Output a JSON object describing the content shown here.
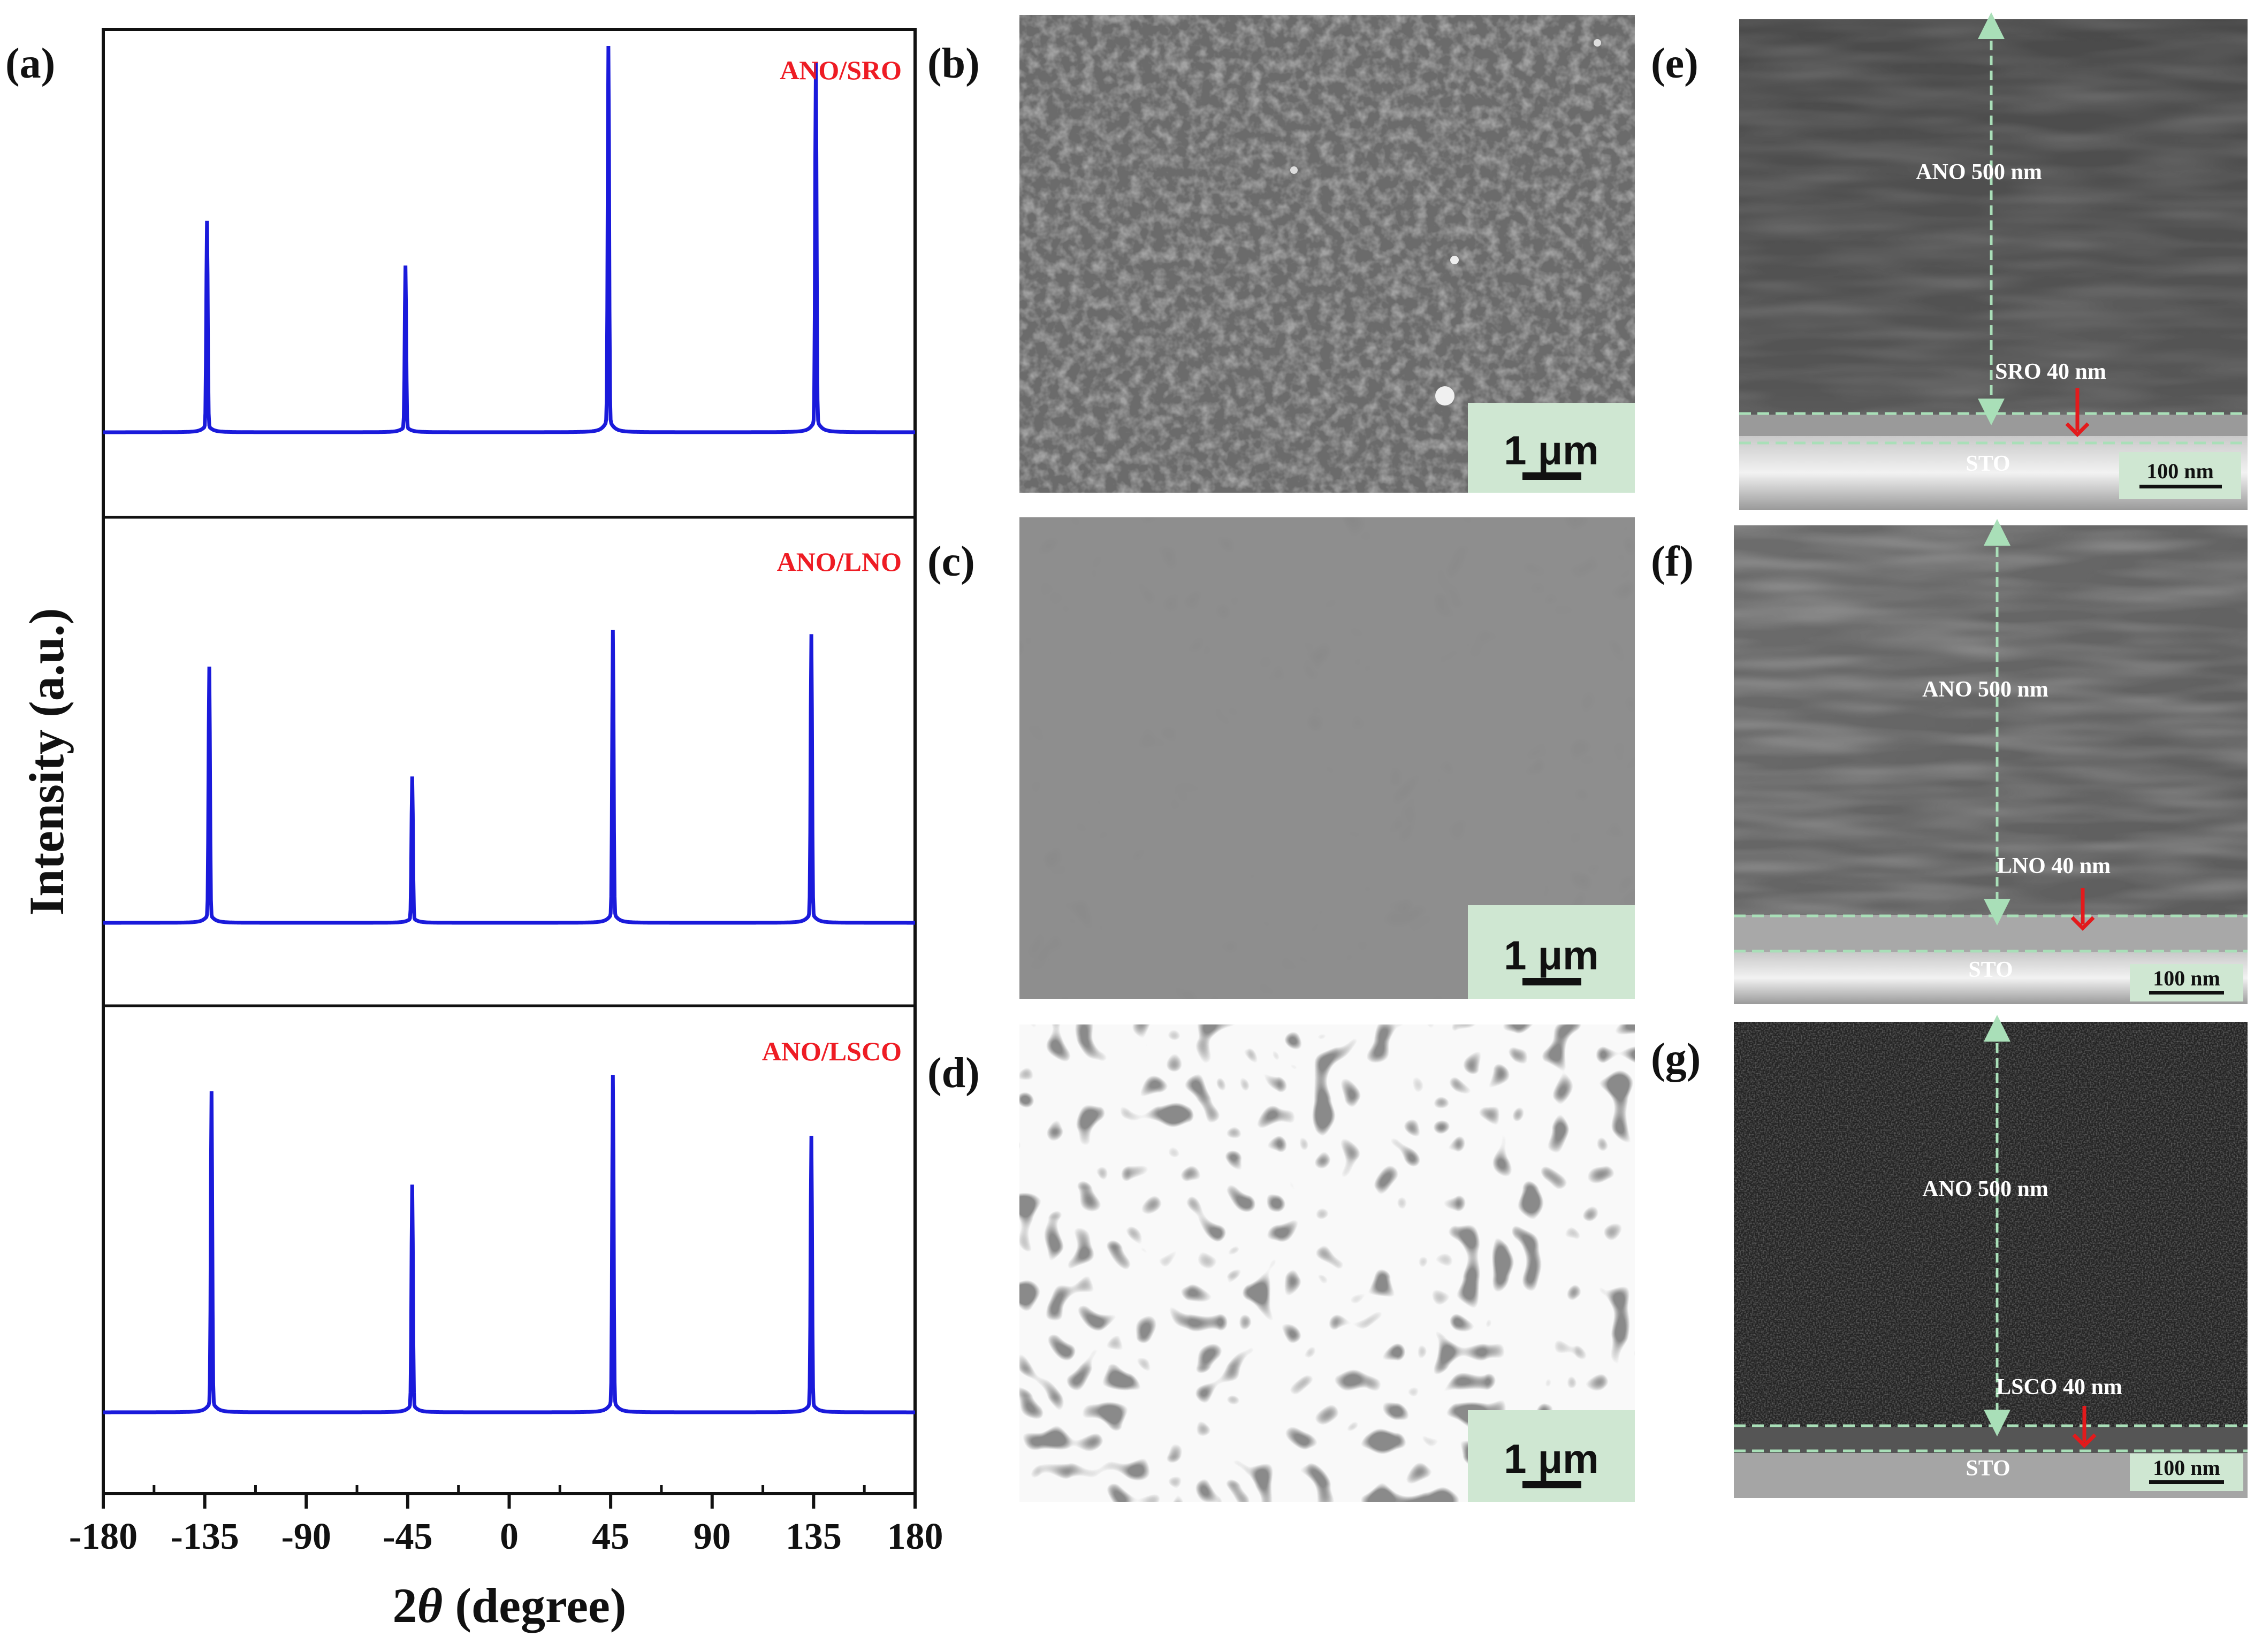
{
  "colors": {
    "trace": "#1a1adb",
    "phase_label": "#ee1c24",
    "scalebar_bg": "#cfe7d2",
    "guide": "#a9dfb8",
    "arrow": "#e31a1c"
  },
  "panel_labels": {
    "a": "(a)",
    "b": "(b)",
    "c": "(c)",
    "d": "(d)",
    "e": "(e)",
    "f": "(f)",
    "g": "(g)"
  },
  "chart_data": {
    "type": "line",
    "ylabel": "Intensity (a.u.)",
    "xlabel_symbol": "2",
    "xlabel_theta": "θ",
    "xlabel_unit": " (degree)",
    "xlim": [
      -180,
      180
    ],
    "xticks": [
      "-180",
      "-135",
      "-90",
      "-45",
      "0",
      "45",
      "90",
      "135",
      "180"
    ],
    "xtick_values": [
      -180,
      -135,
      -90,
      -45,
      0,
      45,
      90,
      135,
      180
    ],
    "grid": false,
    "series": [
      {
        "name": "ANO/SRO",
        "peaks": [
          {
            "x": -134,
            "height": 0.52
          },
          {
            "x": -46,
            "height": 0.41
          },
          {
            "x": 44,
            "height": 0.95
          },
          {
            "x": 136,
            "height": 0.91
          }
        ]
      },
      {
        "name": "ANO/LNO",
        "peaks": [
          {
            "x": -133,
            "height": 0.63
          },
          {
            "x": -43,
            "height": 0.36
          },
          {
            "x": 46,
            "height": 0.72
          },
          {
            "x": 134,
            "height": 0.71
          }
        ]
      },
      {
        "name": "ANO/LSCO",
        "peaks": [
          {
            "x": -132,
            "height": 0.79
          },
          {
            "x": -43,
            "height": 0.56
          },
          {
            "x": 46,
            "height": 0.83
          },
          {
            "x": 134,
            "height": 0.68
          }
        ]
      }
    ]
  },
  "sem_top": [
    {
      "id": "b",
      "scale": "1 μm"
    },
    {
      "id": "c",
      "scale": "1 μm"
    },
    {
      "id": "d",
      "scale": "1 μm"
    }
  ],
  "sem_cross": [
    {
      "id": "e",
      "film": "ANO  500 nm",
      "bottom": "SRO  40 nm",
      "substrate": "STO",
      "scale": "100 nm"
    },
    {
      "id": "f",
      "film": "ANO  500 nm",
      "bottom": "LNO  40 nm",
      "substrate": "STO",
      "scale": "100 nm"
    },
    {
      "id": "g",
      "film": "ANO  500 nm",
      "bottom": "LSCO  40 nm",
      "substrate": "STO",
      "scale": "100 nm"
    }
  ]
}
